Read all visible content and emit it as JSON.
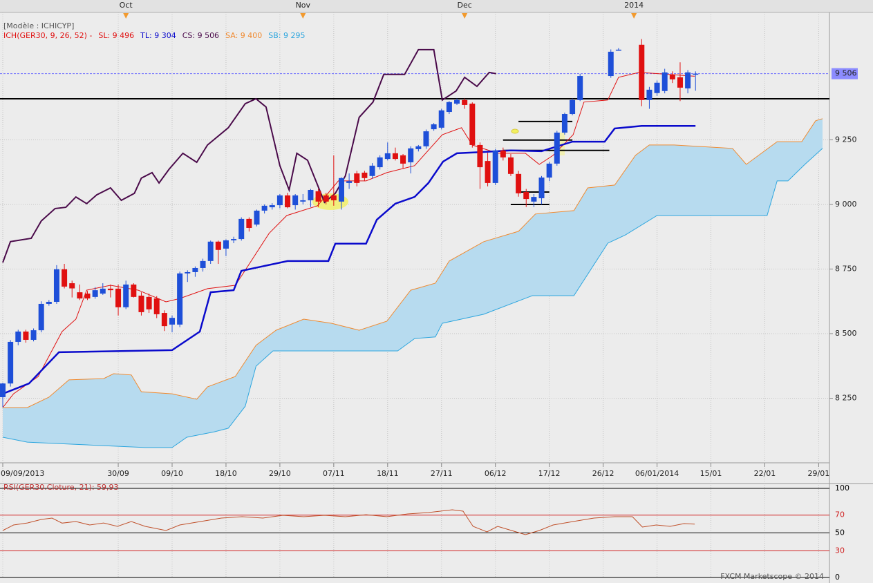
{
  "chart_data": [
    {
      "type": "candlestick",
      "header": "[Modèle : ICHICYP]",
      "indicator": "ICH(GER30, 9, 26, 52) -",
      "top_ticks": [
        {
          "value": 16,
          "label": "Oct"
        },
        {
          "value": 39,
          "label": "Nov"
        },
        {
          "value": 60,
          "label": "Dec"
        },
        {
          "value": 82,
          "label": "2014"
        }
      ],
      "xlim": [
        -0.36,
        107.4
      ],
      "xticks": [
        {
          "value": 0,
          "label": "09/09/2013"
        },
        {
          "value": 15,
          "label": "30/09"
        },
        {
          "value": 22,
          "label": "09/10"
        },
        {
          "value": 29,
          "label": "18/10"
        },
        {
          "value": 36,
          "label": "29/10"
        },
        {
          "value": 43,
          "label": "07/11"
        },
        {
          "value": 50,
          "label": "18/11"
        },
        {
          "value": 57,
          "label": "27/11"
        },
        {
          "value": 64,
          "label": "06/12"
        },
        {
          "value": 71,
          "label": "17/12"
        },
        {
          "value": 78,
          "label": "26/12"
        },
        {
          "value": 85,
          "label": "06/01/2014"
        },
        {
          "value": 92,
          "label": "15/01"
        },
        {
          "value": 99,
          "label": "22/01"
        },
        {
          "value": 106,
          "label": "29/01"
        }
      ],
      "ylim": [
        8000,
        9711
      ],
      "yticks": [
        {
          "value": 8250,
          "label": "8 250"
        },
        {
          "value": 8500,
          "label": "8 500"
        },
        {
          "value": 8750,
          "label": "8 750"
        },
        {
          "value": 9000,
          "label": "9 000"
        },
        {
          "value": 9250,
          "label": "9 250"
        }
      ],
      "grid": true,
      "candles": {
        "up_color": "#1e4fd8",
        "down_color": "#e01010",
        "open": [
          8254,
          8307,
          8468,
          8508,
          8476,
          8513,
          8615,
          8623,
          8749,
          8695,
          8660,
          8655,
          8642,
          8655,
          8674,
          8674,
          8602,
          8690,
          8647,
          8642,
          8636,
          8580,
          8535,
          8535,
          8733,
          8738,
          8754,
          8781,
          8856,
          8829,
          8861,
          8866,
          8944,
          8922,
          8976,
          8989,
          8997,
          9035,
          8997,
          9011,
          9016,
          9051,
          9035,
          9035,
          9011,
          9083,
          9120,
          9123,
          9110,
          9144,
          9176,
          9198,
          9190,
          9163,
          9214,
          9225,
          9291,
          9297,
          9358,
          9390,
          9404,
          9390,
          9230,
          9168,
          9083,
          9209,
          9182,
          9118,
          9048,
          9011,
          9024,
          9104,
          9158,
          9278,
          9350,
          9404,
          null,
          null,
          null,
          9497,
          9599,
          null,
          null,
          9618,
          9404,
          9431,
          9439,
          9503,
          9492,
          9449,
          9506
        ],
        "high": [
          8310,
          8475,
          8515,
          8515,
          8520,
          8625,
          8630,
          8765,
          8770,
          8705,
          8690,
          8665,
          8680,
          8695,
          8690,
          8690,
          8705,
          8695,
          8660,
          8655,
          8645,
          8590,
          8570,
          8740,
          8745,
          8760,
          8790,
          8860,
          8860,
          8865,
          8875,
          8950,
          8950,
          8980,
          9000,
          9005,
          9040,
          9045,
          9040,
          9040,
          9060,
          9060,
          9045,
          9190,
          9105,
          9120,
          9130,
          9130,
          9160,
          9190,
          9240,
          9220,
          9195,
          9225,
          9230,
          9290,
          9315,
          9370,
          9400,
          9410,
          9410,
          9395,
          9240,
          9200,
          9215,
          9220,
          9195,
          9130,
          9060,
          9040,
          9110,
          9165,
          9285,
          9355,
          9410,
          9505,
          null,
          null,
          null,
          9600,
          9605,
          null,
          null,
          9640,
          9455,
          9480,
          9525,
          9515,
          9550,
          9520,
          9515
        ],
        "low": [
          8215,
          8295,
          8455,
          8465,
          8470,
          8505,
          8608,
          8615,
          8675,
          8640,
          8630,
          8630,
          8635,
          8650,
          8640,
          8570,
          8595,
          8640,
          8570,
          8580,
          8560,
          8510,
          8505,
          8525,
          8700,
          8720,
          8740,
          8770,
          8770,
          8800,
          8850,
          8860,
          8895,
          8915,
          8965,
          8980,
          8985,
          8985,
          8980,
          9000,
          8990,
          8990,
          9000,
          8995,
          8980,
          9060,
          9070,
          9090,
          9100,
          9135,
          9170,
          9170,
          9140,
          9120,
          9205,
          9215,
          9285,
          9290,
          9350,
          9385,
          9370,
          9220,
          9060,
          9070,
          9075,
          9170,
          9110,
          9030,
          8990,
          8990,
          9000,
          9090,
          9150,
          9270,
          9345,
          9400,
          null,
          null,
          null,
          9490,
          9595,
          null,
          null,
          9380,
          9370,
          9420,
          9430,
          9470,
          9400,
          9430,
          9440
        ],
        "close": [
          8307,
          8468,
          8508,
          8476,
          8513,
          8615,
          8623,
          8749,
          8682,
          8675,
          8636,
          8636,
          8668,
          8674,
          8668,
          8602,
          8690,
          8642,
          8583,
          8594,
          8575,
          8529,
          8561,
          8733,
          8738,
          8754,
          8781,
          8856,
          8824,
          8861,
          8866,
          8944,
          8909,
          8976,
          8995,
          8997,
          9035,
          8989,
          9035,
          9016,
          9056,
          9011,
          9011,
          9016,
          9102,
          9090,
          9083,
          9102,
          9150,
          9182,
          9198,
          9176,
          9158,
          9217,
          9225,
          9283,
          9310,
          9364,
          9396,
          9404,
          9385,
          9230,
          9144,
          9083,
          9209,
          9182,
          9118,
          9043,
          9021,
          9029,
          9104,
          9158,
          9278,
          9350,
          9404,
          9497,
          null,
          null,
          null,
          9591,
          9599,
          null,
          null,
          9404,
          9444,
          9471,
          9511,
          9484,
          9452,
          9511,
          9506
        ]
      },
      "series": [
        {
          "name": "SL: 9 496",
          "color": "#e01010",
          "width": 1,
          "x": [
            0,
            1.4,
            4.6,
            7.7,
            9.5,
            10.9,
            14,
            17.6,
            21.2,
            23,
            26.6,
            30.2,
            31.1,
            34.6,
            36.9,
            40.9,
            43.6,
            47.2,
            49.9,
            53.5,
            57.1,
            59.6,
            61,
            64.3,
            67.9,
            69.7,
            71.5,
            74.1,
            75.5,
            78.6,
            80,
            82.7,
            89.9
          ],
          "values": [
            8214,
            8267,
            8334,
            8508,
            8556,
            8668,
            8687,
            8668,
            8623,
            8636,
            8674,
            8687,
            8727,
            8888,
            8957,
            8995,
            9091,
            9091,
            9123,
            9150,
            9270,
            9297,
            9230,
            9198,
            9198,
            9155,
            9190,
            9270,
            9396,
            9404,
            9492,
            9511,
            9496
          ]
        },
        {
          "name": "TL: 9 304",
          "color": "#0a0acc",
          "width": 2.5,
          "x": [
            0,
            3.4,
            7.3,
            22,
            25.6,
            27,
            30,
            31,
            37,
            42.3,
            43.2,
            47.2,
            48.6,
            51,
            53.5,
            55.3,
            57.2,
            59,
            62.5,
            66,
            70,
            74,
            78.2,
            79.5,
            83,
            90
          ],
          "values": [
            8267,
            8307,
            8428,
            8436,
            8508,
            8660,
            8668,
            8743,
            8781,
            8781,
            8848,
            8848,
            8941,
            9003,
            9029,
            9083,
            9166,
            9198,
            9203,
            9209,
            9206,
            9243,
            9243,
            9294,
            9304,
            9304
          ]
        },
        {
          "name": "CS: 9 506",
          "color": "#4a0a4a",
          "width": 2,
          "x": [
            0,
            1,
            3.7,
            5,
            6.8,
            8.2,
            9.5,
            10.9,
            12.2,
            14,
            15.4,
            17.1,
            18,
            19.4,
            20.3,
            21.6,
            23.4,
            25.2,
            26.6,
            29.3,
            31.5,
            32.9,
            34.2,
            36,
            37.2,
            38.2,
            39.6,
            41.8,
            43.2,
            44.5,
            46.3,
            48.1,
            49.5,
            52.2,
            54,
            56,
            57.1,
            58.9,
            60,
            61.6,
            63.2,
            64.1
          ],
          "values": [
            8775,
            8856,
            8869,
            8936,
            8984,
            8989,
            9029,
            9003,
            9037,
            9064,
            9016,
            9043,
            9102,
            9123,
            9083,
            9136,
            9198,
            9163,
            9230,
            9297,
            9390,
            9409,
            9377,
            9150,
            9056,
            9198,
            9171,
            9008,
            9043,
            9110,
            9337,
            9396,
            9503,
            9503,
            9599,
            9599,
            9404,
            9439,
            9492,
            9457,
            9511,
            9506
          ]
        },
        {
          "name": "SA: 9 400",
          "color": "#f08a30",
          "width": 1,
          "x": [
            0,
            3.2,
            6,
            8.6,
            13.1,
            14.4,
            16.7,
            18,
            22,
            25.2,
            26.6,
            30.2,
            32.9,
            35.5,
            39.1,
            42.7,
            46.3,
            49.9,
            53,
            56.2,
            58,
            62.5,
            67,
            69.2,
            74.2,
            76,
            79.5,
            82.2,
            84,
            87.2,
            94.8,
            96.6,
            100.6,
            103.8,
            105.6,
            106.5
          ],
          "values": [
            8214,
            8214,
            8254,
            8321,
            8326,
            8345,
            8340,
            8275,
            8267,
            8246,
            8294,
            8334,
            8455,
            8513,
            8556,
            8540,
            8513,
            8548,
            8668,
            8695,
            8781,
            8856,
            8896,
            8963,
            8976,
            9064,
            9075,
            9190,
            9230,
            9230,
            9217,
            9155,
            9243,
            9243,
            9324,
            9332
          ]
        },
        {
          "name": "SB: 9 295",
          "color": "#2ea6de",
          "width": 1,
          "x": [
            0,
            3.2,
            18.5,
            22,
            23.9,
            27.5,
            29.3,
            31.5,
            32.9,
            35.1,
            51.3,
            53.5,
            56.2,
            57.1,
            62.5,
            62.9,
            68.8,
            74.2,
            78.6,
            80.9,
            85,
            99.3,
            100.6,
            102,
            104.2,
            106.5
          ],
          "values": [
            8099,
            8080,
            8059,
            8059,
            8099,
            8120,
            8134,
            8219,
            8374,
            8433,
            8433,
            8481,
            8487,
            8540,
            8575,
            8580,
            8647,
            8647,
            8850,
            8882,
            8957,
            8957,
            9091,
            9091,
            9155,
            9217
          ]
        }
      ],
      "cloud_color": "#b7dbef",
      "last_price": {
        "value": 9506,
        "label": "9 506"
      },
      "hlines": [
        9409
      ],
      "segments": [
        {
          "value": 9321,
          "x": [
            67,
            74
          ]
        },
        {
          "value": 9249,
          "x": [
            65,
            74
          ]
        },
        {
          "value": 9209,
          "x": [
            65,
            78.8
          ]
        },
        {
          "value": 9000,
          "x": [
            66,
            71
          ]
        },
        {
          "value": 9048,
          "x": [
            67,
            71
          ]
        }
      ]
    },
    {
      "type": "line",
      "title": "RSI(GER30.Cloture, 21): 59,93",
      "footer": "FXCM Marketscope © 2014",
      "xlim": [
        -0.36,
        107.4
      ],
      "ylim": [
        0,
        100
      ],
      "yticks": [
        0,
        30,
        50,
        70,
        100
      ],
      "level_colors": [
        "#000000",
        "#d02020",
        "#000000",
        "#d02020",
        "#000000"
      ],
      "series": [
        {
          "color": "#c0502a",
          "x": [
            0,
            1.4,
            3.2,
            5,
            6.4,
            7.7,
            9.5,
            11.3,
            13.1,
            14.9,
            16.7,
            18.5,
            21.2,
            23,
            25.7,
            28.4,
            31.1,
            33.8,
            36.4,
            39.1,
            41.8,
            44.5,
            47.2,
            49.9,
            52.6,
            55.3,
            58.4,
            59.8,
            61.1,
            62.9,
            64.3,
            66.1,
            67.9,
            69.7,
            71.5,
            74.1,
            76.8,
            79.5,
            81.8,
            83.1,
            84.9,
            86.7,
            88.5,
            89.9
          ],
          "values": [
            52.7,
            58.9,
            61.2,
            65.1,
            66.7,
            61,
            62.8,
            58.9,
            61.2,
            57.4,
            62.8,
            57.4,
            52.7,
            58.9,
            62.8,
            66.7,
            68.2,
            66.7,
            69.8,
            68.2,
            69.8,
            68.2,
            70.5,
            68.2,
            71.3,
            72.9,
            76,
            74.4,
            57.4,
            51.2,
            57.4,
            52.7,
            48.1,
            52.7,
            58.9,
            62.8,
            66.7,
            68.2,
            68.2,
            56.6,
            58.9,
            57.4,
            60.5,
            59.93
          ]
        }
      ]
    }
  ]
}
